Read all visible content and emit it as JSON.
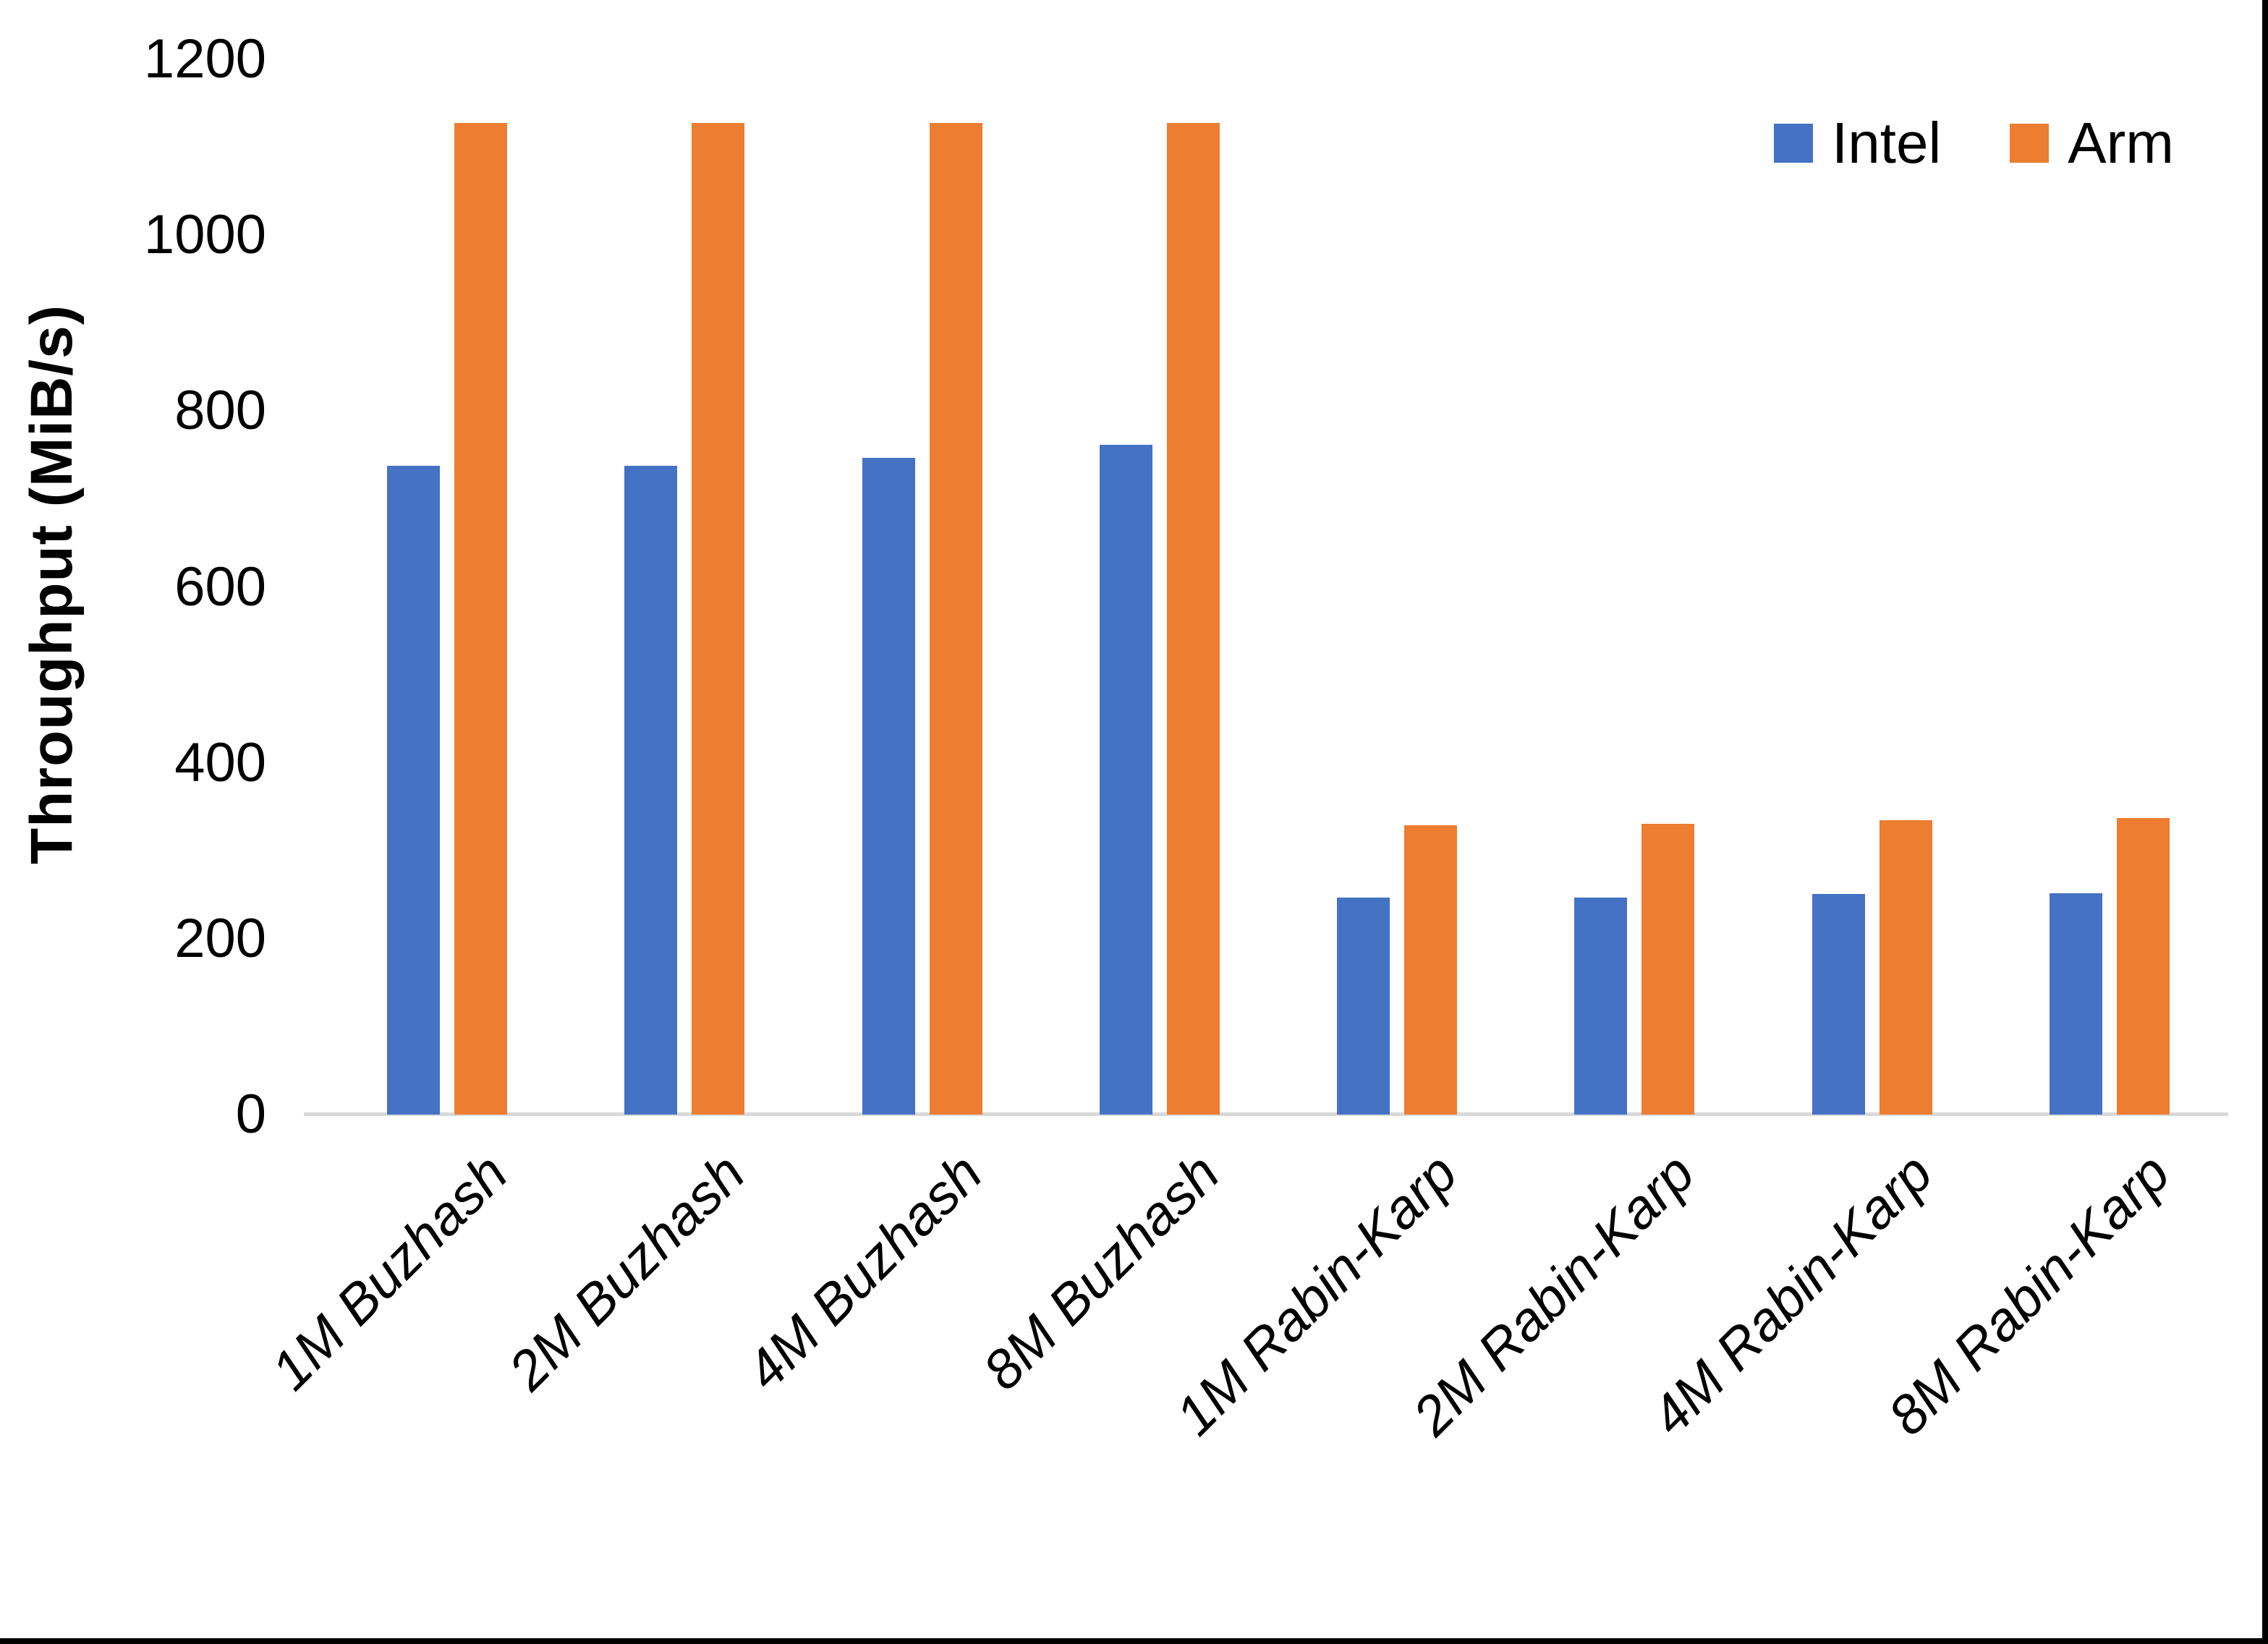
{
  "chart_data": {
    "type": "bar",
    "title": "",
    "ylabel": "Throughput (MiB/s)",
    "xlabel": "",
    "categories": [
      "1M Buzhash",
      "2M Buzhash",
      "4M Buzhash",
      "8M Buzhash",
      "1M Rabin-Karp",
      "2M Rabin-Karp",
      "4M Rabin-Karp",
      "8M Rabin-Karp"
    ],
    "series": [
      {
        "name": "Intel",
        "color": "#4472C4",
        "values": [
          738,
          738,
          747,
          762,
          247,
          247,
          251,
          252
        ]
      },
      {
        "name": "Arm",
        "color": "#ED7D31",
        "values": [
          1128,
          1128,
          1128,
          1128,
          329,
          331,
          335,
          337
        ]
      }
    ],
    "ylim": [
      0,
      1200
    ],
    "yticks": [
      0,
      200,
      400,
      600,
      800,
      1000,
      1200
    ],
    "grid": false,
    "legend_position": "top-right",
    "axis_line_color": "#D9D9D9",
    "frame_border_color": "#000000",
    "background_color": "#FFFFFF"
  }
}
